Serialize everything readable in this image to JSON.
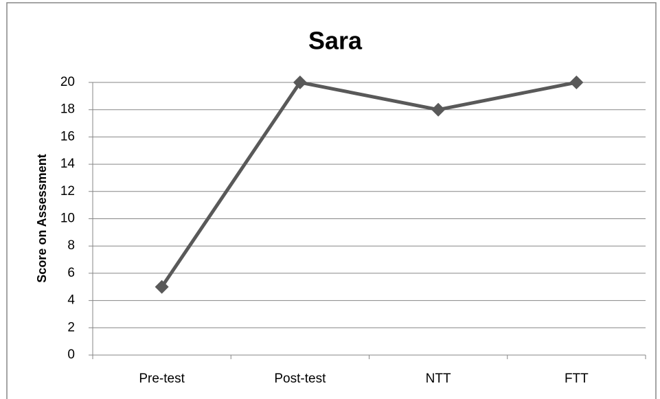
{
  "chart_data": {
    "type": "line",
    "title": "Sara",
    "ylabel": "Score on Assessment",
    "categories": [
      "Pre-test",
      "Post-test",
      "NTT",
      "FTT"
    ],
    "series": [
      {
        "name": "Sara",
        "color": "#595959",
        "values": [
          5,
          20,
          18,
          20
        ]
      }
    ],
    "ylim": [
      0,
      20
    ],
    "yticks": [
      0,
      2,
      4,
      6,
      8,
      10,
      12,
      14,
      16,
      18,
      20
    ],
    "grid": true
  }
}
